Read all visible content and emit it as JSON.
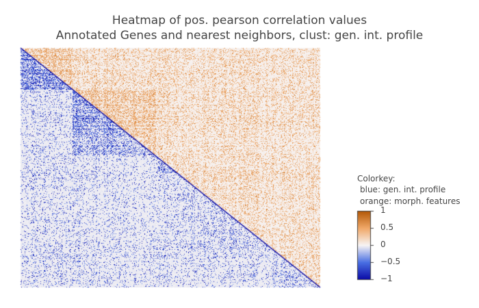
{
  "chart_data": {
    "type": "heatmap",
    "title": {
      "line1": "Heatmap of pos. pearson correlation values",
      "line2": "Annotated Genes and nearest neighbors, clust: gen. int. profile"
    },
    "matrix_layout": "lower triangle = gen. int. profile (blue), upper triangle = morph. features (orange)",
    "zlim": [
      -1,
      1
    ],
    "colorscale": {
      "negative_end": "#0a0aa6",
      "negative_mid": "#4a6fe3",
      "zero": "#f7f4f4",
      "positive_mid": "#f0a868",
      "positive_end": "#b35806"
    },
    "colorkey": {
      "heading": "Colorkey:",
      "blue_line": "blue: gen. int. profile",
      "orange_line": "orange: morph. features",
      "ticks": [
        {
          "value": 1,
          "label": "1"
        },
        {
          "value": 0.5,
          "label": "0.5"
        },
        {
          "value": 0,
          "label": "0"
        },
        {
          "value": -0.5,
          "label": "−0.5"
        },
        {
          "value": -1,
          "label": "−1"
        }
      ]
    },
    "clusters": [
      {
        "start": 0.0,
        "end": 0.17,
        "density": 0.75
      },
      {
        "start": 0.17,
        "end": 0.45,
        "density": 0.55
      },
      {
        "start": 0.45,
        "end": 0.52,
        "density": 0.45
      },
      {
        "start": 0.52,
        "end": 0.84,
        "density": 0.12
      },
      {
        "start": 0.84,
        "end": 1.0,
        "density": 0.2
      }
    ],
    "grid": false,
    "axes_visible": false
  }
}
